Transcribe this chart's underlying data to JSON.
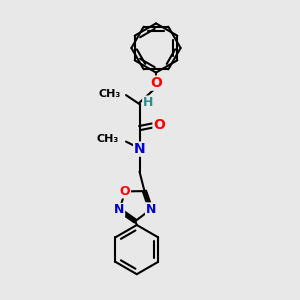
{
  "background_color": "#e8e8e8",
  "bond_color": "#000000",
  "bond_width": 1.5,
  "atom_colors": {
    "O": "#ff0000",
    "N": "#0000cd",
    "H": "#2e8b8b",
    "C": "#000000"
  },
  "font_size_atom": 9,
  "font_size_small": 8
}
